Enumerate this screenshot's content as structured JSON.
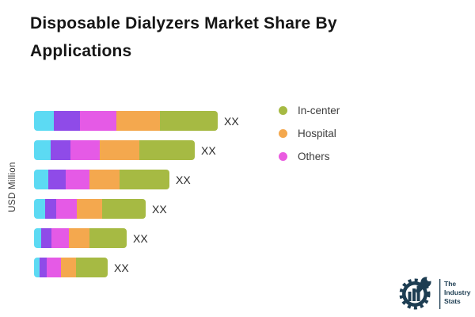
{
  "title": "Disposable Dialyzers Market Share By Applications",
  "y_axis_label": "USD Million",
  "chart_data": {
    "type": "bar",
    "orientation": "horizontal",
    "stacked": true,
    "title": "Disposable Dialyzers Market Share By Applications",
    "ylabel": "USD Million",
    "value_labels_placeholder": "XX",
    "grid": false,
    "legend_position": "right",
    "segment_names": [
      "",
      "",
      "Others",
      "Hospital",
      "In-center"
    ],
    "segment_colors": [
      "#5cdaf3",
      "#8f4be8",
      "#e55ae6",
      "#f4a84e",
      "#a6ba43"
    ],
    "bars": [
      {
        "value_label": "XX",
        "segments": [
          25,
          33,
          46,
          55,
          73
        ]
      },
      {
        "value_label": "XX",
        "segments": [
          21,
          25,
          37,
          50,
          70
        ]
      },
      {
        "value_label": "XX",
        "segments": [
          18,
          22,
          30,
          38,
          63
        ]
      },
      {
        "value_label": "XX",
        "segments": [
          14,
          14,
          26,
          32,
          55
        ]
      },
      {
        "value_label": "XX",
        "segments": [
          9,
          13,
          22,
          26,
          47
        ]
      },
      {
        "value_label": "XX",
        "segments": [
          7,
          9,
          18,
          19,
          40
        ]
      }
    ]
  },
  "legend": {
    "items": [
      {
        "label": "In-center",
        "color": "#a6ba43"
      },
      {
        "label": "Hospital",
        "color": "#f4a84e"
      },
      {
        "label": "Others",
        "color": "#ea5ce0"
      }
    ]
  },
  "logo": {
    "text_lines": [
      "The",
      "Industry",
      "Stats"
    ],
    "color": "#1d3d52"
  }
}
